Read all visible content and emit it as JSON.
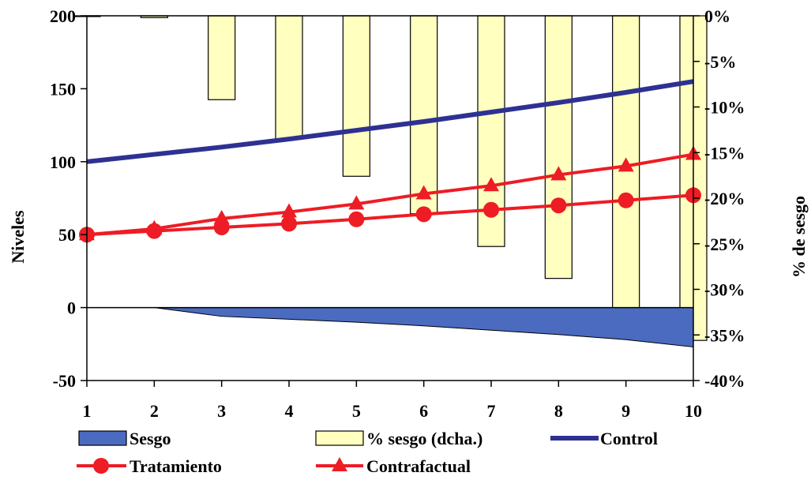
{
  "chart_data": {
    "type": "bar",
    "x": [
      1,
      2,
      3,
      4,
      5,
      6,
      7,
      8,
      9,
      10
    ],
    "xlim": [
      1,
      10
    ],
    "ylabel_left": "Niveles",
    "ylabel_right": "% de sesgo",
    "ylim_left": [
      -50,
      200
    ],
    "ylim_right": [
      -40,
      0
    ],
    "yticks_left": [
      -50,
      0,
      50,
      100,
      150,
      200
    ],
    "yticks_right": [
      0,
      -5,
      -10,
      -15,
      -20,
      -25,
      -30,
      -35,
      -40
    ],
    "ytick_labels_right": [
      "0%",
      "-5%",
      "-10%",
      "-15%",
      "-20%",
      "-25%",
      "-30%",
      "-35%",
      "-40%"
    ],
    "grid": false,
    "legend_position": "bottom",
    "series": [
      {
        "name": "Sesgo",
        "kind": "area",
        "axis": "left",
        "color": "#4a6bbf",
        "values": [
          0,
          0,
          -6,
          -8,
          -10,
          -12.5,
          -15.5,
          -18.5,
          -22,
          -27
        ]
      },
      {
        "name": "% sesgo (dcha.)",
        "kind": "bar",
        "axis": "right",
        "color": "#ffffc0",
        "values": [
          0,
          -0.2,
          -9.2,
          -13.5,
          -17.6,
          -21.7,
          -25.3,
          -28.8,
          -32.3,
          -35.6
        ]
      },
      {
        "name": "Control",
        "kind": "line",
        "axis": "left",
        "color": "#2e3192",
        "values": [
          100,
          105,
          110,
          115.5,
          121.5,
          127.5,
          134,
          140.5,
          147.5,
          155
        ]
      },
      {
        "name": "Tratamiento",
        "kind": "line",
        "marker": "circle",
        "axis": "left",
        "color": "#ee1c24",
        "values": [
          50,
          52.5,
          55,
          57.5,
          60.5,
          64,
          67,
          70,
          73.5,
          77
        ]
      },
      {
        "name": "Contrafactual",
        "kind": "line",
        "marker": "triangle",
        "axis": "left",
        "color": "#ee1c24",
        "values": [
          50,
          54,
          61,
          65.5,
          71,
          78,
          83.5,
          91,
          97,
          105
        ]
      }
    ]
  }
}
